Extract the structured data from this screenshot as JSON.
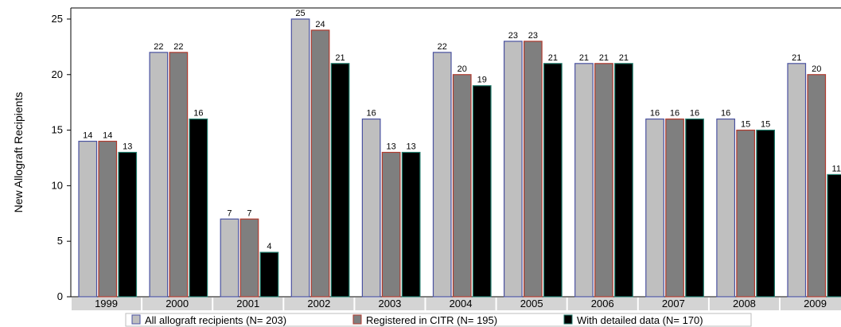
{
  "chart_data": {
    "type": "bar",
    "ylabel": "New Allograft Recipients",
    "ylim": [
      0,
      26
    ],
    "yticks": [
      0,
      5,
      10,
      15,
      20,
      25
    ],
    "grid": false,
    "legend_position": "bottom",
    "categories": [
      "1999",
      "2000",
      "2001",
      "2002",
      "2003",
      "2004",
      "2005",
      "2006",
      "2007",
      "2008",
      "2009"
    ],
    "series": [
      {
        "name": "All allograft recipients (N= 203)",
        "values": [
          14,
          22,
          7,
          25,
          16,
          22,
          23,
          21,
          16,
          16,
          21
        ],
        "fill": "#bfbfbf",
        "stroke": "#4a52a0"
      },
      {
        "name": "Registered in CITR (N= 195)",
        "values": [
          14,
          22,
          7,
          24,
          13,
          20,
          23,
          21,
          16,
          15,
          20
        ],
        "fill": "#7f7f7f",
        "stroke": "#b03a2e"
      },
      {
        "name": "With detailed data (N= 170)",
        "values": [
          13,
          16,
          4,
          21,
          13,
          19,
          21,
          21,
          16,
          15,
          11
        ],
        "fill": "#000000",
        "stroke": "#1f7a6a"
      }
    ],
    "category_band_color": "#d4d4d4"
  }
}
